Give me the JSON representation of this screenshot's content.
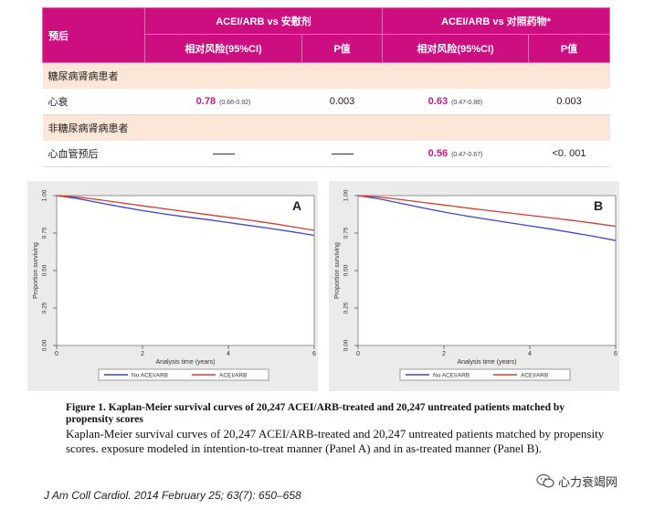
{
  "table": {
    "corner": "预后",
    "group1": "ACEI/ARB vs 安慰剂",
    "group2": "ACEI/ARB vs 对照药物*",
    "sub_rr": "相对风险(95%CI)",
    "sub_p": "P值",
    "sections": [
      {
        "title": "糖尿病肾病患者",
        "row": {
          "label": "心衰",
          "rr1": "0.78",
          "ci1": "(0.66-0.92)",
          "p1": "0.003",
          "rr2": "0.63",
          "ci2": "(0.47-0.86)",
          "p2": "0.003"
        }
      },
      {
        "title": "非糖尿病肾病患者",
        "row": {
          "label": "心血管预后",
          "rr1": "",
          "ci1": "",
          "p1": "",
          "rr2": "0.56",
          "ci2": "(0.47-0.67)",
          "p2": "<0. 001"
        }
      }
    ]
  },
  "chart_data": [
    {
      "type": "line",
      "panel_label": "A",
      "xlabel": "Analysis time (years)",
      "ylabel": "Proportion surviving",
      "xlim": [
        0,
        6
      ],
      "ylim": [
        0,
        1
      ],
      "x_ticks": [
        "0",
        "2",
        "4",
        "6"
      ],
      "y_ticks": [
        "0.00",
        "0.25",
        "0.50",
        "0.75",
        "1.00"
      ],
      "x": [
        0,
        0.5,
        1,
        1.5,
        2,
        2.5,
        3,
        3.5,
        4,
        4.5,
        5,
        5.5,
        6
      ],
      "series": [
        {
          "name": "No ACEI/ARB",
          "color": "#3b46c9",
          "values": [
            1.0,
            0.98,
            0.952,
            0.925,
            0.9,
            0.878,
            0.858,
            0.84,
            0.82,
            0.8,
            0.78,
            0.758,
            0.735
          ]
        },
        {
          "name": "ACEI/ARB",
          "color": "#d63a2e",
          "values": [
            1.0,
            0.99,
            0.972,
            0.952,
            0.932,
            0.912,
            0.893,
            0.874,
            0.855,
            0.836,
            0.815,
            0.792,
            0.768
          ]
        }
      ],
      "legend_position": "bottom"
    },
    {
      "type": "line",
      "panel_label": "B",
      "xlabel": "Analysis time (years)",
      "ylabel": "Proportion surviving",
      "xlim": [
        0,
        6
      ],
      "ylim": [
        0,
        1
      ],
      "x_ticks": [
        "0",
        "2",
        "4",
        "6"
      ],
      "y_ticks": [
        "0.00",
        "0.25",
        "0.50",
        "0.75",
        "1.00"
      ],
      "x": [
        0,
        0.5,
        1,
        1.5,
        2,
        2.5,
        3,
        3.5,
        4,
        4.5,
        5,
        5.5,
        6
      ],
      "series": [
        {
          "name": "No ACEI/ARB",
          "color": "#3b46c9",
          "values": [
            1.0,
            0.978,
            0.948,
            0.918,
            0.89,
            0.865,
            0.842,
            0.82,
            0.798,
            0.776,
            0.752,
            0.728,
            0.7
          ]
        },
        {
          "name": "ACEI/ARB",
          "color": "#d63a2e",
          "values": [
            1.0,
            0.99,
            0.973,
            0.955,
            0.937,
            0.919,
            0.902,
            0.885,
            0.868,
            0.851,
            0.834,
            0.815,
            0.795
          ]
        }
      ],
      "legend_position": "bottom"
    }
  ],
  "caption": {
    "bold": "Figure 1. Kaplan-Meier survival curves of 20,247 ACEI/ARB-treated and 20,247 untreated patients matched by propensity scores",
    "normal": "Kaplan-Meier survival curves of 20,247 ACEI/ARB-treated and 20,247 untreated patients matched by propensity scores. exposure modeled in intention-to-treat manner (Panel A) and in as-treated manner (Panel B)."
  },
  "citation": "J Am Coll Cardiol. 2014 February 25; 63(7): 650–658",
  "watermark": {
    "text": "心力衰竭网",
    "icon": "wechat-icon"
  }
}
